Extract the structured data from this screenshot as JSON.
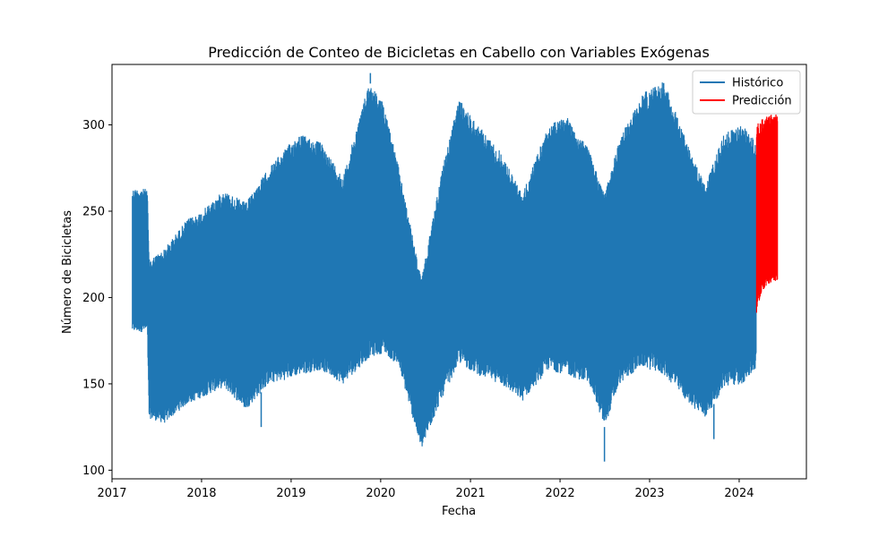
{
  "chart_data": {
    "type": "line",
    "title": "Predicción de Conteo de Bicicletas en Cabello con Variables Exógenas",
    "xlabel": "Fecha",
    "ylabel": "Número de Bicicletas",
    "xlim": [
      "2017-01-01",
      "2024-10-01"
    ],
    "ylim": [
      95,
      335
    ],
    "xticks": [
      "2017",
      "2018",
      "2019",
      "2020",
      "2021",
      "2022",
      "2023",
      "2024"
    ],
    "yticks": [
      100,
      150,
      200,
      250,
      300
    ],
    "grid": false,
    "legend_position": "top-right",
    "series": [
      {
        "name": "Histórico",
        "color": "#1f77b4",
        "envelope": [
          {
            "x": "2017-03-25",
            "low": 180,
            "high": 263
          },
          {
            "x": "2017-05-25",
            "low": 180,
            "high": 263
          },
          {
            "x": "2017-06-01",
            "low": 130,
            "high": 222
          },
          {
            "x": "2017-08-01",
            "low": 127,
            "high": 228
          },
          {
            "x": "2017-11-01",
            "low": 138,
            "high": 245
          },
          {
            "x": "2018-01-01",
            "low": 142,
            "high": 250
          },
          {
            "x": "2018-04-01",
            "low": 148,
            "high": 262
          },
          {
            "x": "2018-07-01",
            "low": 135,
            "high": 255
          },
          {
            "x": "2018-10-01",
            "low": 150,
            "high": 275
          },
          {
            "x": "2018-12-01",
            "low": 152,
            "high": 285
          },
          {
            "x": "2019-02-01",
            "low": 155,
            "high": 295
          },
          {
            "x": "2019-05-01",
            "low": 158,
            "high": 290
          },
          {
            "x": "2019-08-01",
            "low": 150,
            "high": 270
          },
          {
            "x": "2019-11-15",
            "low": 165,
            "high": 325
          },
          {
            "x": "2020-01-15",
            "low": 168,
            "high": 312
          },
          {
            "x": "2020-03-15",
            "low": 160,
            "high": 275
          },
          {
            "x": "2020-06-15",
            "low": 112,
            "high": 210
          },
          {
            "x": "2020-09-01",
            "low": 140,
            "high": 270
          },
          {
            "x": "2020-11-15",
            "low": 162,
            "high": 315
          },
          {
            "x": "2021-02-01",
            "low": 155,
            "high": 300
          },
          {
            "x": "2021-05-01",
            "low": 150,
            "high": 285
          },
          {
            "x": "2021-08-01",
            "low": 140,
            "high": 260
          },
          {
            "x": "2021-11-15",
            "low": 158,
            "high": 300
          },
          {
            "x": "2022-02-01",
            "low": 155,
            "high": 305
          },
          {
            "x": "2022-05-01",
            "low": 150,
            "high": 285
          },
          {
            "x": "2022-07-01",
            "low": 125,
            "high": 260
          },
          {
            "x": "2022-09-01",
            "low": 150,
            "high": 292
          },
          {
            "x": "2022-12-01",
            "low": 160,
            "high": 318
          },
          {
            "x": "2023-03-01",
            "low": 155,
            "high": 326
          },
          {
            "x": "2023-06-01",
            "low": 140,
            "high": 290
          },
          {
            "x": "2023-08-15",
            "low": 130,
            "high": 265
          },
          {
            "x": "2023-11-01",
            "low": 148,
            "high": 295
          },
          {
            "x": "2024-01-15",
            "low": 150,
            "high": 300
          },
          {
            "x": "2024-03-10",
            "low": 158,
            "high": 290
          }
        ],
        "notable_points": [
          {
            "x": "2019-11-20",
            "y": 330
          },
          {
            "x": "2022-07-01",
            "y": 105
          },
          {
            "x": "2023-09-20",
            "y": 118
          },
          {
            "x": "2018-09-01",
            "y": 125
          }
        ]
      },
      {
        "name": "Predicción",
        "color": "#ff0000",
        "envelope": [
          {
            "x": "2024-03-12",
            "low": 190,
            "high": 300
          },
          {
            "x": "2024-04-01",
            "low": 203,
            "high": 303
          },
          {
            "x": "2024-05-01",
            "low": 208,
            "high": 306
          },
          {
            "x": "2024-06-05",
            "low": 210,
            "high": 306
          }
        ]
      }
    ]
  }
}
